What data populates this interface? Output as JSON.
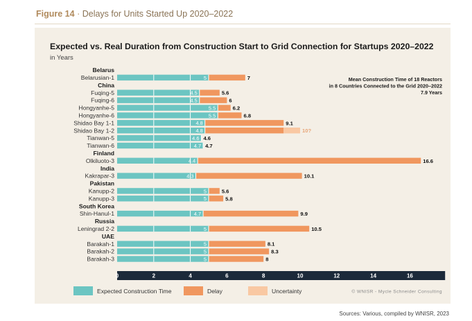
{
  "figure": {
    "number": "Figure 14",
    "separator": "·",
    "caption": "Delays for Units Started Up 2020–2022"
  },
  "chart_data": {
    "type": "bar",
    "stacked": true,
    "title": "Expected vs. Real Duration from Construction Start to Grid Connection for Startups 2020–2022",
    "subtitle": "in Years",
    "xlim": [
      0,
      18
    ],
    "xticks": [
      0,
      2,
      4,
      6,
      8,
      10,
      12,
      14,
      16
    ],
    "xlabel": "",
    "ylabel": "",
    "groups": [
      {
        "country": "Belarus",
        "units": [
          {
            "name": "Belarusian-1",
            "expected": 5,
            "delay": 2,
            "total": 7,
            "expected_label": "5",
            "total_label": "7"
          }
        ]
      },
      {
        "country": "China",
        "units": [
          {
            "name": "Fuqing-5",
            "expected": 4.5,
            "delay": 1.1,
            "total": 5.6,
            "expected_label": "4.5",
            "total_label": "5.6"
          },
          {
            "name": "Fuqing-6",
            "expected": 4.5,
            "delay": 1.5,
            "total": 6,
            "expected_label": "4.5",
            "total_label": "6"
          },
          {
            "name": "Hongyanhe-5",
            "expected": 5.5,
            "delay": 0.7,
            "total": 6.2,
            "expected_label": "5.5",
            "total_label": "6.2"
          },
          {
            "name": "Hongyanhe-6",
            "expected": 5.5,
            "delay": 1.3,
            "total": 6.8,
            "expected_label": "5.5",
            "total_label": "6.8"
          },
          {
            "name": "Shidao Bay 1-1",
            "expected": 4.8,
            "delay": 4.3,
            "total": 9.1,
            "expected_label": "4.8",
            "total_label": "9.1"
          },
          {
            "name": "Shidao Bay 1-2",
            "expected": 4.8,
            "delay": 4.3,
            "uncertainty": 0.9,
            "total": 10,
            "expected_label": "4.8",
            "total_label": "10?"
          },
          {
            "name": "Tianwan-5",
            "expected": 4.6,
            "delay": 0,
            "total": 4.6,
            "expected_label": "4.6",
            "total_label": "4.6"
          },
          {
            "name": "Tianwan-6",
            "expected": 4.7,
            "delay": 0,
            "total": 4.7,
            "expected_label": "4.7",
            "total_label": "4.7"
          }
        ]
      },
      {
        "country": "Finland",
        "units": [
          {
            "name": "Olkiluoto-3",
            "expected": 4.4,
            "delay": 12.2,
            "total": 16.6,
            "expected_label": "4.4",
            "total_label": "16.6"
          }
        ]
      },
      {
        "country": "India",
        "units": [
          {
            "name": "Kakrapar-3",
            "expected": 4.3,
            "delay": 5.8,
            "total": 10.1,
            "expected_label": "4.3",
            "total_label": "10.1"
          }
        ]
      },
      {
        "country": "Pakistan",
        "units": [
          {
            "name": "Kanupp-2",
            "expected": 5,
            "delay": 0.6,
            "total": 5.6,
            "expected_label": "5",
            "total_label": "5.6"
          },
          {
            "name": "Kanupp-3",
            "expected": 5,
            "delay": 0.8,
            "total": 5.8,
            "expected_label": "5",
            "total_label": "5.8"
          }
        ]
      },
      {
        "country": "South Korea",
        "units": [
          {
            "name": "Shin-Hanul-1",
            "expected": 4.7,
            "delay": 5.2,
            "total": 9.9,
            "expected_label": "4.7",
            "total_label": "9.9"
          }
        ]
      },
      {
        "country": "Russia",
        "units": [
          {
            "name": "Leningrad 2-2",
            "expected": 5,
            "delay": 5.5,
            "total": 10.5,
            "expected_label": "5",
            "total_label": "10.5"
          }
        ]
      },
      {
        "country": "UAE",
        "units": [
          {
            "name": "Barakah-1",
            "expected": 5,
            "delay": 3.1,
            "total": 8.1,
            "expected_label": "5",
            "total_label": "8.1"
          },
          {
            "name": "Barakah-2",
            "expected": 5,
            "delay": 3.3,
            "total": 8.3,
            "expected_label": "5",
            "total_label": "8.3"
          },
          {
            "name": "Barakah-3",
            "expected": 5,
            "delay": 3,
            "total": 8,
            "expected_label": "5",
            "total_label": "8"
          }
        ]
      }
    ],
    "annotation": {
      "lines": [
        "Mean Construction Time of 18 Reactors",
        "in 8 Countries Connected to the Grid 2020–2022",
        "7.9 Years"
      ],
      "placement": "top-right"
    },
    "legend": {
      "placement": "bottom",
      "items": [
        {
          "key": "expected",
          "label": "Expected Construction Time",
          "color": "#6cc5c2"
        },
        {
          "key": "delay",
          "label": "Delay",
          "color": "#f0975f"
        },
        {
          "key": "uncertainty",
          "label": "Uncertainty",
          "color": "#f9c8a3"
        }
      ]
    },
    "credit": "© WNISR - Mycle Schneider Consulting"
  },
  "colors": {
    "expected": "#6cc5c2",
    "delay": "#f0975f",
    "uncertainty": "#f9c8a3",
    "axis": "#1c2a3a",
    "header": "#b08a5c"
  },
  "source": "Sources: Various, compiled by WNISR, 2023"
}
